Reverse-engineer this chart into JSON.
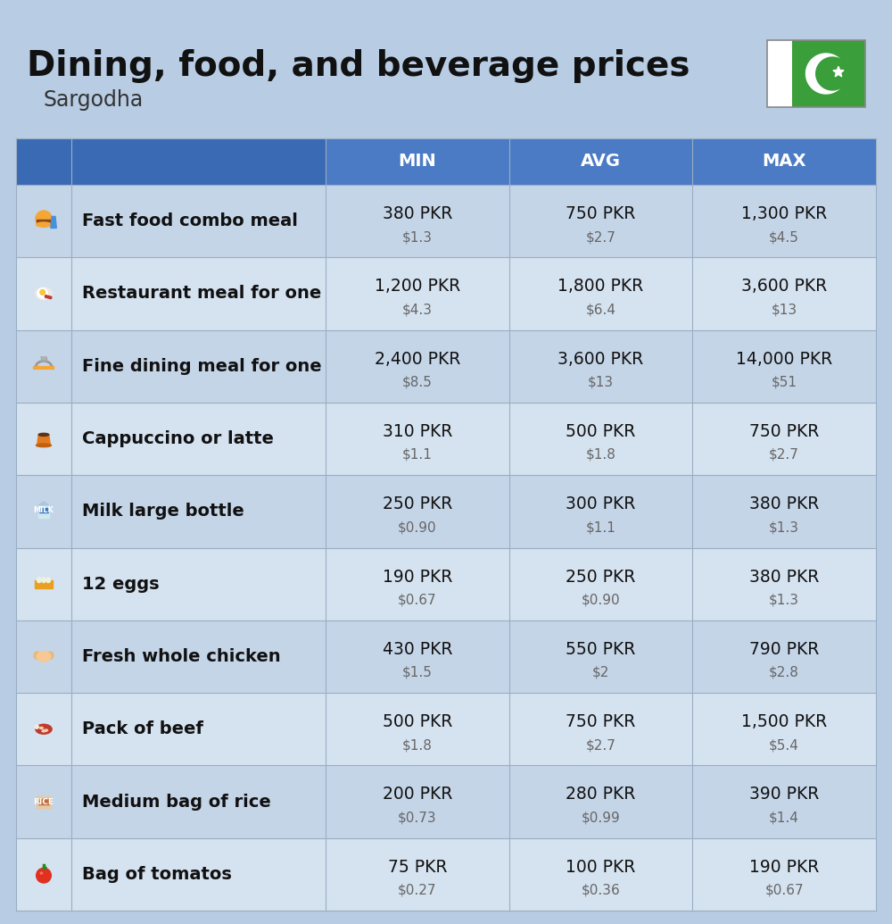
{
  "title": "Dining, food, and beverage prices",
  "subtitle": "Sargodha",
  "bg_color": "#b8cce4",
  "header_bg": "#4a7bc4",
  "header_left_bg": "#3a6ab3",
  "col_headers": [
    "MIN",
    "AVG",
    "MAX"
  ],
  "row_colors": [
    "#c5d5e8",
    "#d5e2f0"
  ],
  "items": [
    {
      "label": "Fast food combo meal",
      "min_pkr": "380 PKR",
      "min_usd": "$1.3",
      "avg_pkr": "750 PKR",
      "avg_usd": "$2.7",
      "max_pkr": "1,300 PKR",
      "max_usd": "$4.5"
    },
    {
      "label": "Restaurant meal for one",
      "min_pkr": "1,200 PKR",
      "min_usd": "$4.3",
      "avg_pkr": "1,800 PKR",
      "avg_usd": "$6.4",
      "max_pkr": "3,600 PKR",
      "max_usd": "$13"
    },
    {
      "label": "Fine dining meal for one",
      "min_pkr": "2,400 PKR",
      "min_usd": "$8.5",
      "avg_pkr": "3,600 PKR",
      "avg_usd": "$13",
      "max_pkr": "14,000 PKR",
      "max_usd": "$51"
    },
    {
      "label": "Cappuccino or latte",
      "min_pkr": "310 PKR",
      "min_usd": "$1.1",
      "avg_pkr": "500 PKR",
      "avg_usd": "$1.8",
      "max_pkr": "750 PKR",
      "max_usd": "$2.7"
    },
    {
      "label": "Milk large bottle",
      "min_pkr": "250 PKR",
      "min_usd": "$0.90",
      "avg_pkr": "300 PKR",
      "avg_usd": "$1.1",
      "max_pkr": "380 PKR",
      "max_usd": "$1.3"
    },
    {
      "label": "12 eggs",
      "min_pkr": "190 PKR",
      "min_usd": "$0.67",
      "avg_pkr": "250 PKR",
      "avg_usd": "$0.90",
      "max_pkr": "380 PKR",
      "max_usd": "$1.3"
    },
    {
      "label": "Fresh whole chicken",
      "min_pkr": "430 PKR",
      "min_usd": "$1.5",
      "avg_pkr": "550 PKR",
      "avg_usd": "$2",
      "max_pkr": "790 PKR",
      "max_usd": "$2.8"
    },
    {
      "label": "Pack of beef",
      "min_pkr": "500 PKR",
      "min_usd": "$1.8",
      "avg_pkr": "750 PKR",
      "avg_usd": "$2.7",
      "max_pkr": "1,500 PKR",
      "max_usd": "$5.4"
    },
    {
      "label": "Medium bag of rice",
      "min_pkr": "200 PKR",
      "min_usd": "$0.73",
      "avg_pkr": "280 PKR",
      "avg_usd": "$0.99",
      "max_pkr": "390 PKR",
      "max_usd": "$1.4"
    },
    {
      "label": "Bag of tomatos",
      "min_pkr": "75 PKR",
      "min_usd": "$0.27",
      "avg_pkr": "100 PKR",
      "avg_usd": "$0.36",
      "max_pkr": "190 PKR",
      "max_usd": "$0.67"
    }
  ],
  "flag_green": "#3a9e3a",
  "flag_white": "#ffffff"
}
